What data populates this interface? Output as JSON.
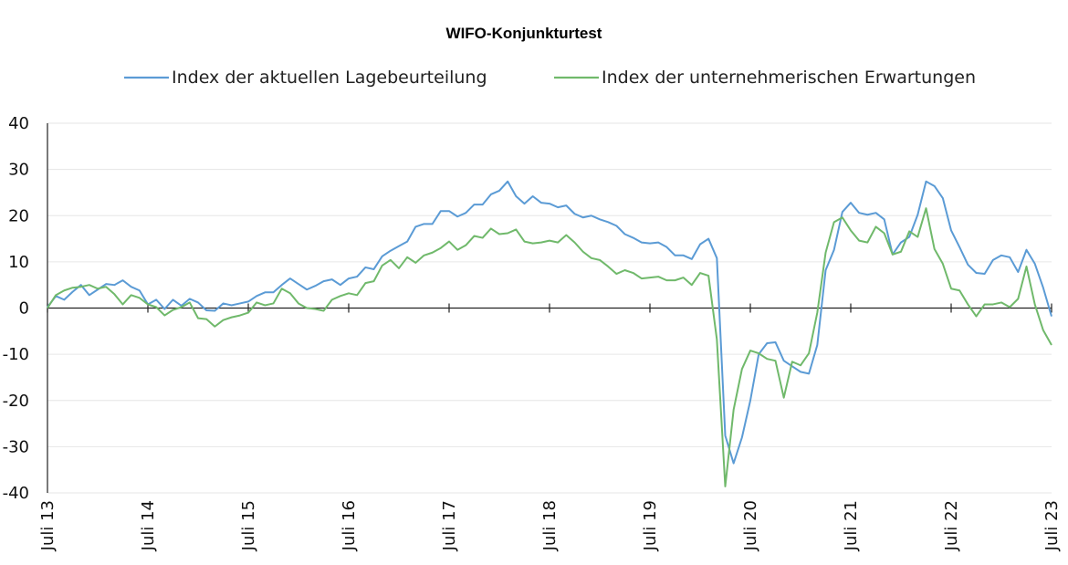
{
  "chart_data": {
    "type": "line",
    "title": "WIFO-Konjunkturtest",
    "xlabel": "",
    "ylabel": "",
    "ylim": [
      -40,
      40
    ],
    "yticks": [
      40,
      30,
      20,
      10,
      0,
      -10,
      -20,
      -30,
      -40
    ],
    "x_tick_labels": [
      "Juli 13",
      "Juli 14",
      "Juli 15",
      "Juli 16",
      "Juli 17",
      "Juli 18",
      "Juli 19",
      "Juli 20",
      "Juli 21",
      "Juli 22",
      "Juli 23"
    ],
    "x_start": "2013-07",
    "x_end": "2023-07",
    "grid": true,
    "legend_position": "top",
    "series": [
      {
        "name": "Index der aktuellen Lagebeurteilung",
        "color": "#5b9bd5",
        "values": [
          0.2,
          2.6,
          1.8,
          3.5,
          5.0,
          2.8,
          4.0,
          5.2,
          5.0,
          6.0,
          4.6,
          3.8,
          0.8,
          1.8,
          -0.2,
          1.8,
          0.5,
          2.0,
          1.2,
          -0.5,
          -0.6,
          1.0,
          0.6,
          1.0,
          1.4,
          2.6,
          3.4,
          3.4,
          5.0,
          6.4,
          5.2,
          4.0,
          4.8,
          5.8,
          6.2,
          5.0,
          6.4,
          6.8,
          8.8,
          8.4,
          11.2,
          12.4,
          13.4,
          14.4,
          17.6,
          18.2,
          18.2,
          21.0,
          21.0,
          19.8,
          20.6,
          22.4,
          22.4,
          24.6,
          25.4,
          27.4,
          24.2,
          22.6,
          24.2,
          22.8,
          22.6,
          21.8,
          22.2,
          20.4,
          19.6,
          20.0,
          19.2,
          18.6,
          17.8,
          16.0,
          15.2,
          14.2,
          14.0,
          14.2,
          13.2,
          11.4,
          11.4,
          10.6,
          13.8,
          15.0,
          10.8,
          -27.6,
          -33.6,
          -28.0,
          -20.0,
          -10.0,
          -7.6,
          -7.4,
          -11.4,
          -12.6,
          -13.8,
          -14.2,
          -8.0,
          8.2,
          12.6,
          20.8,
          22.8,
          20.6,
          20.2,
          20.6,
          19.2,
          11.6,
          14.2,
          15.4,
          20.2,
          27.4,
          26.4,
          23.8,
          16.8,
          13.2,
          9.4,
          7.6,
          7.4,
          10.4,
          11.4,
          11.0,
          7.8,
          12.6,
          9.6,
          4.4,
          -1.8
        ]
      },
      {
        "name": "Index der unternehmerischen Erwartungen",
        "color": "#70b96b",
        "values": [
          0.0,
          2.8,
          3.8,
          4.4,
          4.6,
          5.0,
          4.2,
          4.6,
          3.0,
          0.8,
          2.8,
          2.2,
          0.8,
          0.2,
          -1.6,
          -0.4,
          0.2,
          1.2,
          -2.2,
          -2.4,
          -4.0,
          -2.6,
          -2.0,
          -1.6,
          -1.0,
          1.2,
          0.6,
          1.0,
          4.2,
          3.2,
          1.0,
          0.0,
          -0.2,
          -0.6,
          1.8,
          2.6,
          3.2,
          2.8,
          5.4,
          5.8,
          9.2,
          10.4,
          8.6,
          11.0,
          9.8,
          11.4,
          12.0,
          13.0,
          14.4,
          12.6,
          13.6,
          15.6,
          15.2,
          17.2,
          16.0,
          16.2,
          17.0,
          14.4,
          14.0,
          14.2,
          14.6,
          14.2,
          15.8,
          14.2,
          12.2,
          10.8,
          10.4,
          9.0,
          7.4,
          8.2,
          7.6,
          6.4,
          6.6,
          6.8,
          6.0,
          6.0,
          6.6,
          5.0,
          7.6,
          7.0,
          -6.8,
          -38.6,
          -22.0,
          -13.2,
          -9.2,
          -9.8,
          -11.0,
          -11.4,
          -19.4,
          -11.6,
          -12.4,
          -9.8,
          -1.0,
          12.0,
          18.6,
          19.6,
          16.8,
          14.6,
          14.2,
          17.6,
          16.2,
          11.6,
          12.2,
          16.6,
          15.4,
          21.6,
          12.8,
          9.6,
          4.2,
          3.8,
          0.8,
          -1.8,
          0.8,
          0.8,
          1.2,
          0.2,
          2.0,
          9.0,
          0.8,
          -4.8,
          -8.0
        ]
      }
    ]
  }
}
